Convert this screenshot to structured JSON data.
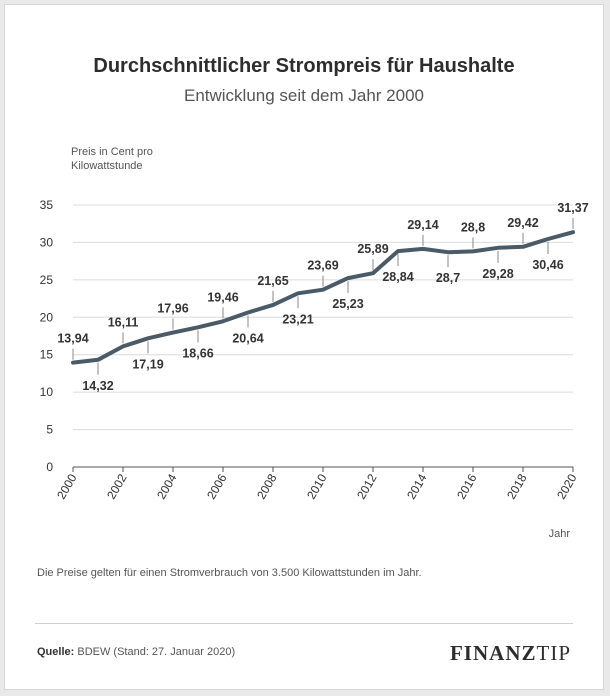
{
  "header": {
    "title": "Durchschnittlicher Strompreis für Haushalte",
    "subtitle": "Entwicklung seit dem Jahr 2000"
  },
  "footer": {
    "note": "Die Preise gelten für einen Stromverbrauch von 3.500 Kilowattstunden im Jahr.",
    "source_label": "Quelle:",
    "source_text": "BDEW (Stand: 27. Januar 2020)",
    "logo_part1": "FINANZ",
    "logo_part2": "TIP"
  },
  "chart_data": {
    "type": "line",
    "title": "Durchschnittlicher Strompreis für Haushalte",
    "subtitle": "Entwicklung seit dem Jahr 2000",
    "ylabel_lines": [
      "Preis in Cent pro",
      "Kilowattstunde"
    ],
    "xlabel": "Jahr",
    "ylim": [
      0,
      35
    ],
    "yticks": [
      0,
      5,
      10,
      15,
      20,
      25,
      30,
      35
    ],
    "xlim": [
      2000,
      2020
    ],
    "xticks": [
      2000,
      2002,
      2004,
      2006,
      2008,
      2010,
      2012,
      2014,
      2016,
      2018,
      2020
    ],
    "color": "#4a5a66",
    "series": [
      {
        "name": "Strompreis",
        "x": [
          2000,
          2001,
          2002,
          2003,
          2004,
          2005,
          2006,
          2007,
          2008,
          2009,
          2010,
          2011,
          2012,
          2013,
          2014,
          2015,
          2016,
          2017,
          2018,
          2019,
          2020
        ],
        "values": [
          13.94,
          14.32,
          16.11,
          17.19,
          17.96,
          18.66,
          19.46,
          20.64,
          21.65,
          23.21,
          23.69,
          25.23,
          25.89,
          28.84,
          29.14,
          28.7,
          28.8,
          29.28,
          29.42,
          30.46,
          31.37
        ],
        "labels": [
          "13,94",
          "14,32",
          "16,11",
          "17,19",
          "17,96",
          "18,66",
          "19,46",
          "20,64",
          "21,65",
          "23,21",
          "23,69",
          "25,23",
          "25,89",
          "28,84",
          "29,14",
          "28,7",
          "28,8",
          "29,28",
          "29,42",
          "30,46",
          "31,37"
        ],
        "label_positions": [
          "above",
          "below",
          "above",
          "below",
          "above",
          "below",
          "above",
          "below",
          "above",
          "below",
          "above",
          "below",
          "above",
          "below",
          "above",
          "below",
          "above",
          "below",
          "above",
          "below",
          "above"
        ]
      }
    ]
  }
}
